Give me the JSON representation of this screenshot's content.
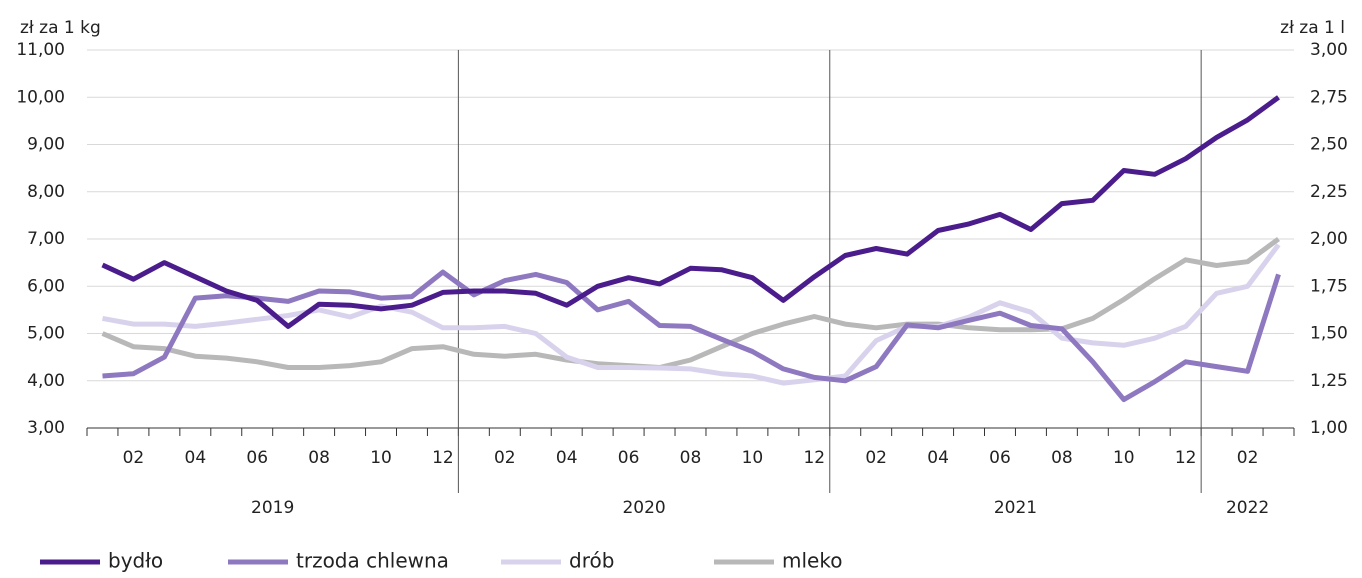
{
  "chart_data": {
    "type": "line",
    "y_label": "zł za 1 kg",
    "y2_label": "zł za 1 l",
    "categories": [
      null,
      "02",
      null,
      "04",
      null,
      "06",
      null,
      "08",
      null,
      "10",
      null,
      "12",
      null,
      "02",
      null,
      "04",
      null,
      "06",
      null,
      "08",
      null,
      "10",
      null,
      "12",
      null,
      "02",
      null,
      "04",
      null,
      "06",
      null,
      "08",
      null,
      "10",
      null,
      "12",
      null,
      "02",
      null
    ],
    "year_labels": [
      "2019",
      "2020",
      "2021",
      "2022"
    ],
    "series": [
      {
        "name": "bydło",
        "color": "#4b1c8c",
        "values": [
          6.45,
          6.15,
          6.5,
          6.2,
          5.9,
          5.7,
          5.15,
          5.62,
          5.6,
          5.52,
          5.6,
          5.87,
          5.9,
          5.9,
          5.85,
          5.6,
          6.0,
          6.18,
          6.05,
          6.38,
          6.35,
          6.18,
          5.7,
          6.2,
          6.65,
          6.8,
          6.68,
          7.18,
          7.32,
          7.52,
          7.2,
          7.75,
          7.82,
          8.45,
          8.37,
          8.7,
          9.15,
          9.52,
          10.0
        ]
      },
      {
        "name": "trzoda chlewna",
        "color": "#8e78c0",
        "values": [
          4.1,
          4.15,
          4.5,
          5.75,
          5.8,
          5.75,
          5.68,
          5.9,
          5.88,
          5.75,
          5.78,
          6.3,
          5.82,
          6.12,
          6.25,
          6.08,
          5.5,
          5.68,
          5.17,
          5.15,
          4.88,
          4.62,
          4.25,
          4.07,
          4.0,
          4.3,
          5.18,
          5.12,
          5.28,
          5.43,
          5.17,
          5.1,
          4.4,
          3.6,
          3.98,
          4.4,
          4.3,
          4.2,
          6.25
        ]
      },
      {
        "name": "drób",
        "color": "#d9d2ec",
        "values": [
          5.32,
          5.2,
          5.2,
          5.15,
          5.22,
          5.3,
          5.38,
          5.5,
          5.35,
          5.58,
          5.45,
          5.12,
          5.12,
          5.15,
          5.0,
          4.5,
          4.28,
          4.28,
          4.27,
          4.25,
          4.15,
          4.1,
          3.95,
          4.02,
          4.1,
          4.85,
          5.15,
          5.15,
          5.35,
          5.65,
          5.45,
          4.9,
          4.8,
          4.75,
          4.9,
          5.15,
          5.85,
          6.0,
          6.88
        ]
      },
      {
        "name": "mleko",
        "color": "#b8b8b8",
        "axis": "y2",
        "values": [
          1.5,
          1.43,
          1.42,
          1.38,
          1.37,
          1.35,
          1.32,
          1.32,
          1.33,
          1.35,
          1.42,
          1.43,
          1.39,
          1.38,
          1.39,
          1.36,
          1.34,
          1.33,
          1.32,
          1.36,
          1.43,
          1.5,
          1.55,
          1.59,
          1.55,
          1.53,
          1.55,
          1.55,
          1.53,
          1.52,
          1.52,
          1.525,
          1.58,
          1.68,
          1.79,
          1.89,
          1.86,
          1.88,
          2.0
        ]
      }
    ],
    "ylim": [
      3,
      11
    ],
    "yticks": [
      {
        "value": 3,
        "label": "3,00"
      },
      {
        "value": 4,
        "label": "4,00"
      },
      {
        "value": 5,
        "label": "5,00"
      },
      {
        "value": 6,
        "label": "6,00"
      },
      {
        "value": 7,
        "label": "7,00"
      },
      {
        "value": 8,
        "label": "8,00"
      },
      {
        "value": 9,
        "label": "9,00"
      },
      {
        "value": 10,
        "label": "10,00"
      },
      {
        "value": 11,
        "label": "11,00"
      }
    ],
    "y2lim": [
      1,
      3
    ],
    "y2ticks": [
      {
        "value": 1,
        "label": "1,00"
      },
      {
        "value": 1.25,
        "label": "1,25"
      },
      {
        "value": 1.5,
        "label": "1,50"
      },
      {
        "value": 1.75,
        "label": "1,75"
      },
      {
        "value": 2,
        "label": "2,00"
      },
      {
        "value": 2.25,
        "label": "2,25"
      },
      {
        "value": 2.5,
        "label": "2,50"
      },
      {
        "value": 2.75,
        "label": "2,75"
      },
      {
        "value": 3,
        "label": "3,00"
      }
    ],
    "grid": true
  }
}
